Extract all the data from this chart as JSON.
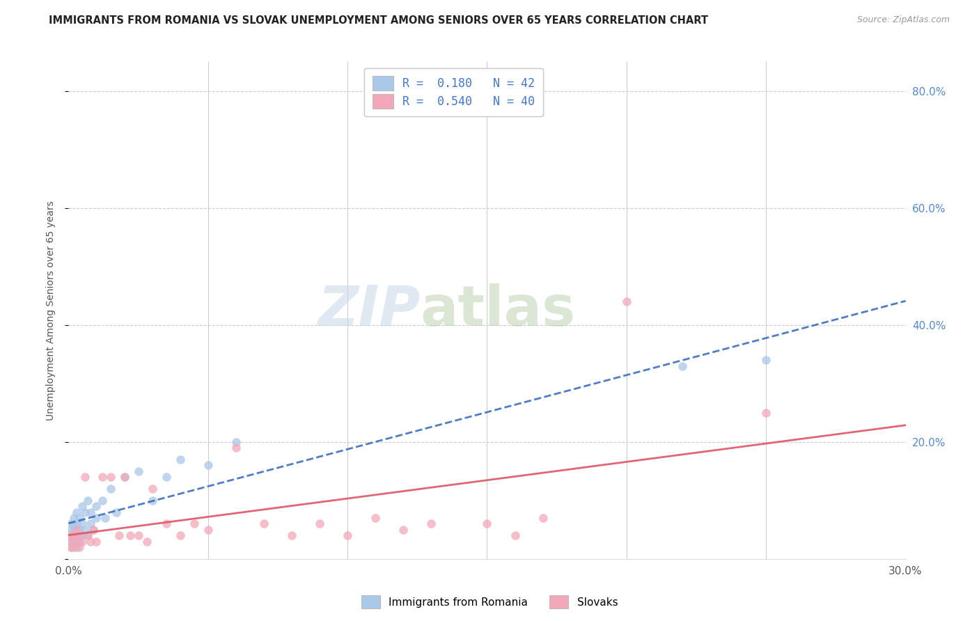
{
  "title": "IMMIGRANTS FROM ROMANIA VS SLOVAK UNEMPLOYMENT AMONG SENIORS OVER 65 YEARS CORRELATION CHART",
  "source": "Source: ZipAtlas.com",
  "ylabel": "Unemployment Among Seniors over 65 years",
  "xlim": [
    0.0,
    0.3
  ],
  "ylim": [
    0.0,
    0.85
  ],
  "y_ticks_right": [
    0.2,
    0.4,
    0.6,
    0.8
  ],
  "y_tick_labels_right": [
    "20.0%",
    "40.0%",
    "60.0%",
    "80.0%"
  ],
  "legend_r1": "R =  0.180   N = 42",
  "legend_r2": "R =  0.540   N = 40",
  "blue_color": "#aac8e8",
  "pink_color": "#f2a8b8",
  "blue_line_color": "#3366bb",
  "pink_line_color": "#dd5566",
  "watermark_zip": "ZIP",
  "watermark_atlas": "atlas",
  "blue_scatter_x": [
    0.001,
    0.001,
    0.001,
    0.001,
    0.001,
    0.002,
    0.002,
    0.002,
    0.002,
    0.002,
    0.003,
    0.003,
    0.003,
    0.003,
    0.004,
    0.004,
    0.004,
    0.005,
    0.005,
    0.005,
    0.006,
    0.006,
    0.007,
    0.007,
    0.008,
    0.008,
    0.009,
    0.01,
    0.01,
    0.012,
    0.013,
    0.015,
    0.017,
    0.02,
    0.025,
    0.03,
    0.035,
    0.04,
    0.05,
    0.06,
    0.22,
    0.25
  ],
  "blue_scatter_y": [
    0.02,
    0.03,
    0.04,
    0.05,
    0.06,
    0.03,
    0.04,
    0.05,
    0.06,
    0.07,
    0.02,
    0.04,
    0.06,
    0.08,
    0.03,
    0.05,
    0.07,
    0.04,
    0.06,
    0.09,
    0.05,
    0.08,
    0.04,
    0.1,
    0.06,
    0.08,
    0.05,
    0.07,
    0.09,
    0.1,
    0.07,
    0.12,
    0.08,
    0.14,
    0.15,
    0.1,
    0.14,
    0.17,
    0.16,
    0.2,
    0.33,
    0.34
  ],
  "pink_scatter_x": [
    0.001,
    0.001,
    0.001,
    0.002,
    0.002,
    0.003,
    0.003,
    0.004,
    0.004,
    0.005,
    0.006,
    0.007,
    0.008,
    0.009,
    0.01,
    0.012,
    0.015,
    0.018,
    0.02,
    0.022,
    0.025,
    0.028,
    0.03,
    0.035,
    0.04,
    0.045,
    0.05,
    0.06,
    0.07,
    0.08,
    0.09,
    0.1,
    0.11,
    0.12,
    0.13,
    0.15,
    0.16,
    0.17,
    0.2,
    0.25
  ],
  "pink_scatter_y": [
    0.02,
    0.03,
    0.04,
    0.02,
    0.04,
    0.03,
    0.05,
    0.02,
    0.04,
    0.03,
    0.14,
    0.04,
    0.03,
    0.05,
    0.03,
    0.14,
    0.14,
    0.04,
    0.14,
    0.04,
    0.04,
    0.03,
    0.12,
    0.06,
    0.04,
    0.06,
    0.05,
    0.19,
    0.06,
    0.04,
    0.06,
    0.04,
    0.07,
    0.05,
    0.06,
    0.06,
    0.04,
    0.07,
    0.44,
    0.25
  ]
}
